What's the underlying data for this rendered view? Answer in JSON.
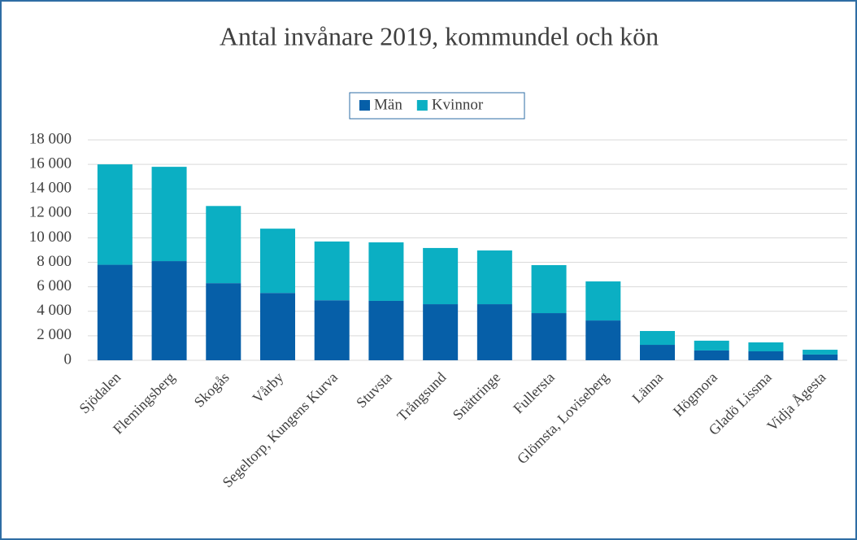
{
  "chart_data": {
    "type": "bar",
    "stacked": true,
    "title": "Antal invånare 2019, kommundel och kön",
    "categories": [
      "Sjödalen",
      "Flemingsberg",
      "Skogås",
      "Vårby",
      "Segeltorp, Kungens Kurva",
      "Stuvsta",
      "Trångsund",
      "Snättringe",
      "Fullersta",
      "Glömsta, Loviseberg",
      "Länna",
      "Högmora",
      "Gladö Lissma",
      "Vidja Ågesta"
    ],
    "series": [
      {
        "name": "Män",
        "color": "#065fa8",
        "values": [
          7800,
          8100,
          6300,
          5500,
          4900,
          4850,
          4580,
          4580,
          3850,
          3250,
          1260,
          800,
          730,
          470
        ]
      },
      {
        "name": "Kvinnor",
        "color": "#0bafc3",
        "values": [
          8200,
          7700,
          6300,
          5250,
          4800,
          4780,
          4590,
          4390,
          3920,
          3190,
          1130,
          800,
          730,
          390
        ]
      }
    ],
    "ylim": [
      0,
      18000
    ],
    "yticks": [
      0,
      {
        "value": 2000,
        "label": "2 000"
      },
      {
        "value": 4000,
        "label": "4 000"
      },
      {
        "value": 6000,
        "label": "6 000"
      },
      {
        "value": 8000,
        "label": "8 000"
      },
      {
        "value": 10000,
        "label": "10 000"
      },
      {
        "value": 12000,
        "label": "12 000"
      },
      {
        "value": 14000,
        "label": "14 000"
      },
      {
        "value": 16000,
        "label": "16 000"
      },
      {
        "value": 18000,
        "label": "18 000"
      }
    ],
    "grid": true,
    "legend": "top"
  }
}
